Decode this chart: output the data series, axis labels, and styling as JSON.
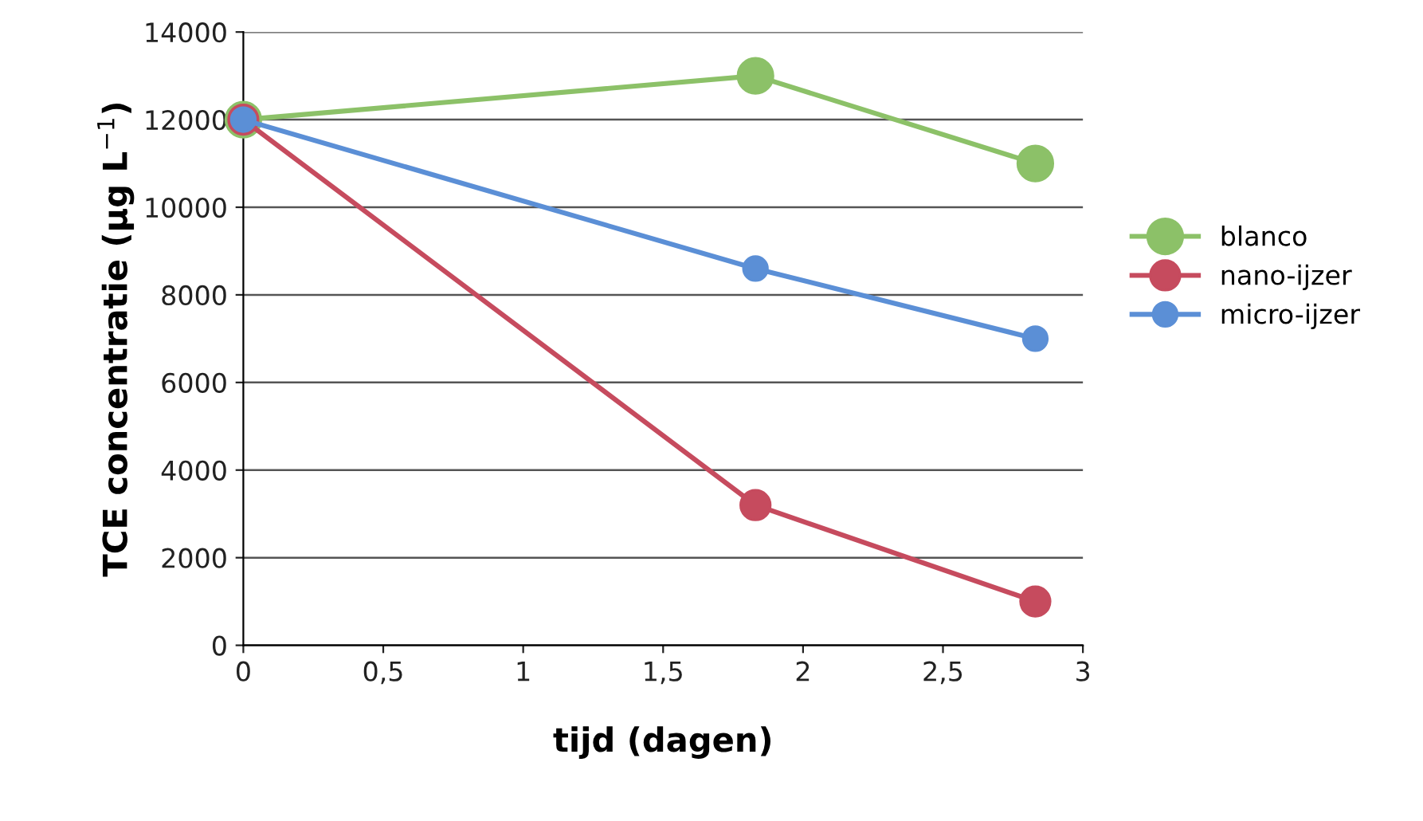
{
  "chart_data": {
    "type": "line",
    "xlabel": "tijd (dagen)",
    "ylabel": "TCE concentratie (µg L$^{−1}$)",
    "xlim": [
      0,
      3
    ],
    "xticks": [
      0,
      {
        "value": 0.5,
        "label": "0,5"
      },
      1,
      {
        "value": 1.5,
        "label": "1,5"
      },
      2,
      {
        "value": 2.5,
        "label": "2,5"
      },
      3
    ],
    "ylim": [
      0,
      14000
    ],
    "yticks": [
      0,
      2000,
      4000,
      6000,
      8000,
      10000,
      12000,
      14000
    ],
    "grid": "y",
    "legend": "right",
    "marker": "circle",
    "line_style": "solid",
    "series": [
      {
        "name": "blanco",
        "color": "#8cc168",
        "x": [
          0,
          1.83,
          2.83
        ],
        "values": [
          12000,
          13000,
          11000
        ]
      },
      {
        "name": "nano-ijzer",
        "color": "#c64b5e",
        "x": [
          0,
          1.83,
          2.83
        ],
        "values": [
          12000,
          3200,
          1000
        ]
      },
      {
        "name": "micro-ijzer",
        "color": "#5b8fd6",
        "x": [
          0,
          1.83,
          2.83
        ],
        "values": [
          12000,
          8600,
          7000
        ]
      }
    ]
  }
}
